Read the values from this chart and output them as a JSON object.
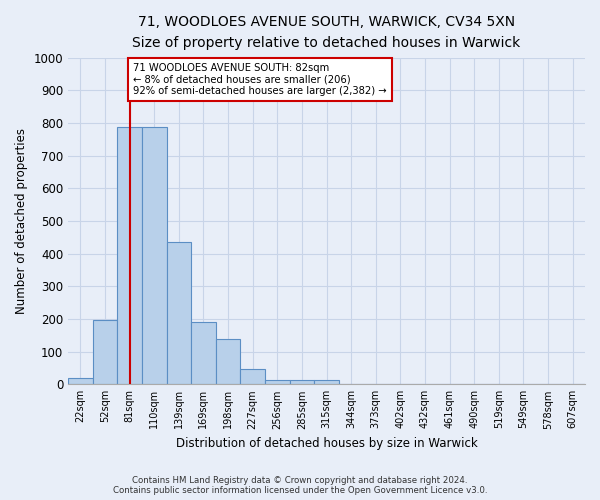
{
  "title_line1": "71, WOODLOES AVENUE SOUTH, WARWICK, CV34 5XN",
  "title_line2": "Size of property relative to detached houses in Warwick",
  "xlabel": "Distribution of detached houses by size in Warwick",
  "ylabel": "Number of detached properties",
  "footer_line1": "Contains HM Land Registry data © Crown copyright and database right 2024.",
  "footer_line2": "Contains public sector information licensed under the Open Government Licence v3.0.",
  "bin_labels": [
    "22sqm",
    "52sqm",
    "81sqm",
    "110sqm",
    "139sqm",
    "169sqm",
    "198sqm",
    "227sqm",
    "256sqm",
    "285sqm",
    "315sqm",
    "344sqm",
    "373sqm",
    "402sqm",
    "432sqm",
    "461sqm",
    "490sqm",
    "519sqm",
    "549sqm",
    "578sqm",
    "607sqm"
  ],
  "bar_values": [
    18,
    197,
    787,
    787,
    435,
    192,
    140,
    48,
    14,
    12,
    12,
    0,
    0,
    0,
    0,
    0,
    0,
    0,
    0,
    0,
    0
  ],
  "bar_color": "#b8d0ea",
  "bar_edge_color": "#5b8ec4",
  "ylim": [
    0,
    1000
  ],
  "yticks": [
    0,
    100,
    200,
    300,
    400,
    500,
    600,
    700,
    800,
    900,
    1000
  ],
  "property_line_x": 2.0,
  "annotation_text_line1": "71 WOODLOES AVENUE SOUTH: 82sqm",
  "annotation_text_line2": "← 8% of detached houses are smaller (206)",
  "annotation_text_line3": "92% of semi-detached houses are larger (2,382) →",
  "vline_color": "#cc0000",
  "annotation_box_color": "#ffffff",
  "annotation_box_edge_color": "#cc0000",
  "background_color": "#e8eef8",
  "grid_color": "#c8d4e8",
  "figsize": [
    6.0,
    5.0
  ],
  "dpi": 100
}
